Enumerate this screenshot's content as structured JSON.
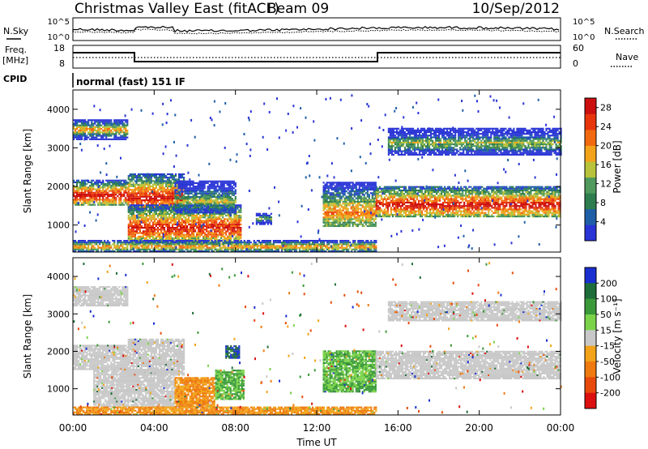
{
  "header": {
    "title": "Christmas Valley East (fitACF)",
    "beam": "Beam 09",
    "date": "10/Sep/2012"
  },
  "top_panels": {
    "nsky_label": "N.Sky",
    "nsearch_label": "N.Search",
    "noise_ticks": [
      "10^5",
      "10^0"
    ],
    "freq_label_1": "Freq.",
    "freq_label_2": "[MHz]",
    "freq_ticks": [
      "18",
      "8"
    ],
    "nave_label": "Nave",
    "nave_ticks": [
      "60",
      "0"
    ],
    "cpid_label": "CPID",
    "cpid_text": "normal (fast) 151 IF"
  },
  "colors": {
    "power_scale": [
      "#2a35d6",
      "#1f5fa8",
      "#2e7d4f",
      "#4f9a5c",
      "#b8c23a",
      "#f2a31a",
      "#f26a10",
      "#e8350c",
      "#cc1010"
    ],
    "velocity_scale": [
      "#1a2fd0",
      "#1f6d3a",
      "#3a9a3a",
      "#7bd34a",
      "#c8c8c8",
      "#f2a31a",
      "#ee7a10",
      "#e84a0c",
      "#dd1010"
    ]
  },
  "chart_data": [
    {
      "type": "heatmap",
      "name": "power",
      "ylabel": "Slant Range [km]",
      "xlim": [
        0,
        24
      ],
      "ylim": [
        300,
        4500
      ],
      "y_ticks": [
        "1000",
        "2000",
        "3000",
        "4000"
      ],
      "y_tick_values": [
        1000,
        2000,
        3000,
        4000
      ],
      "colorbar_label": "Power [dB]",
      "colorbar_ticks": [
        "4",
        "8",
        "12",
        "16",
        "20",
        "24",
        "28"
      ],
      "colorbar_range": [
        0,
        30
      ],
      "scatter_bands": [
        {
          "t0": 0.0,
          "t1": 2.7,
          "r0": 1500,
          "r1": 2150,
          "peak": 1750,
          "level": "high"
        },
        {
          "t0": 0.0,
          "t1": 2.7,
          "r0": 3200,
          "r1": 3700,
          "peak": 3450,
          "level": "mid"
        },
        {
          "t0": 2.7,
          "t1": 5.5,
          "r0": 1350,
          "r1": 2300,
          "peak": 1700,
          "level": "high"
        },
        {
          "t0": 2.7,
          "t1": 8.3,
          "r0": 500,
          "r1": 1500,
          "peak": 900,
          "level": "high"
        },
        {
          "t0": 5.0,
          "t1": 8.0,
          "r0": 1300,
          "r1": 2150,
          "peak": 1600,
          "level": "low"
        },
        {
          "t0": 9.0,
          "t1": 9.8,
          "r0": 1000,
          "r1": 1300,
          "peak": 1150,
          "level": "low"
        },
        {
          "t0": 0.0,
          "t1": 14.9,
          "r0": 300,
          "r1": 600,
          "peak": 420,
          "level": "mid"
        },
        {
          "t0": 12.3,
          "t1": 14.9,
          "r0": 950,
          "r1": 2100,
          "peak": 1300,
          "level": "mid"
        },
        {
          "t0": 14.9,
          "t1": 24.0,
          "r0": 1200,
          "r1": 2000,
          "peak": 1500,
          "level": "high"
        },
        {
          "t0": 15.5,
          "t1": 24.0,
          "r0": 2800,
          "r1": 3500,
          "peak": 3100,
          "level": "low"
        }
      ]
    },
    {
      "type": "heatmap",
      "name": "velocity",
      "ylabel": "Slant Range [km]",
      "xlabel": "Time UT",
      "xlim": [
        0,
        24
      ],
      "ylim": [
        300,
        4500
      ],
      "x_ticks": [
        "00:00",
        "04:00",
        "08:00",
        "12:00",
        "16:00",
        "20:00",
        "00:00"
      ],
      "x_tick_values": [
        0,
        4,
        8,
        12,
        16,
        20,
        24
      ],
      "y_ticks": [
        "1000",
        "2000",
        "3000",
        "4000"
      ],
      "y_tick_values": [
        1000,
        2000,
        3000,
        4000
      ],
      "colorbar_label": "Velocity [m s⁻¹]",
      "colorbar_ticks": [
        "200",
        "100",
        "50",
        "15",
        "-15",
        "-50",
        "-100",
        "-200"
      ],
      "scatter_bands": [
        {
          "t0": 0.0,
          "t1": 2.7,
          "r0": 1500,
          "r1": 2150,
          "v": "gray"
        },
        {
          "t0": 0.0,
          "t1": 2.7,
          "r0": 3200,
          "r1": 3700,
          "v": "gray"
        },
        {
          "t0": 2.7,
          "t1": 5.5,
          "r0": 1350,
          "r1": 2300,
          "v": "gray"
        },
        {
          "t0": 1.0,
          "t1": 5.0,
          "r0": 500,
          "r1": 1500,
          "v": "gray"
        },
        {
          "t0": 5.0,
          "t1": 7.0,
          "r0": 500,
          "r1": 1300,
          "v": "orange"
        },
        {
          "t0": 7.0,
          "t1": 8.4,
          "r0": 700,
          "r1": 1500,
          "v": "green"
        },
        {
          "t0": 7.5,
          "t1": 8.2,
          "r0": 1800,
          "r1": 2150,
          "v": "blue"
        },
        {
          "t0": 0.0,
          "t1": 14.9,
          "r0": 300,
          "r1": 500,
          "v": "orange"
        },
        {
          "t0": 12.3,
          "t1": 14.9,
          "r0": 900,
          "r1": 2000,
          "v": "green"
        },
        {
          "t0": 14.9,
          "t1": 24.0,
          "r0": 1250,
          "r1": 2000,
          "v": "gray"
        },
        {
          "t0": 15.5,
          "t1": 24.0,
          "r0": 2800,
          "r1": 3300,
          "v": "gray"
        }
      ]
    }
  ]
}
